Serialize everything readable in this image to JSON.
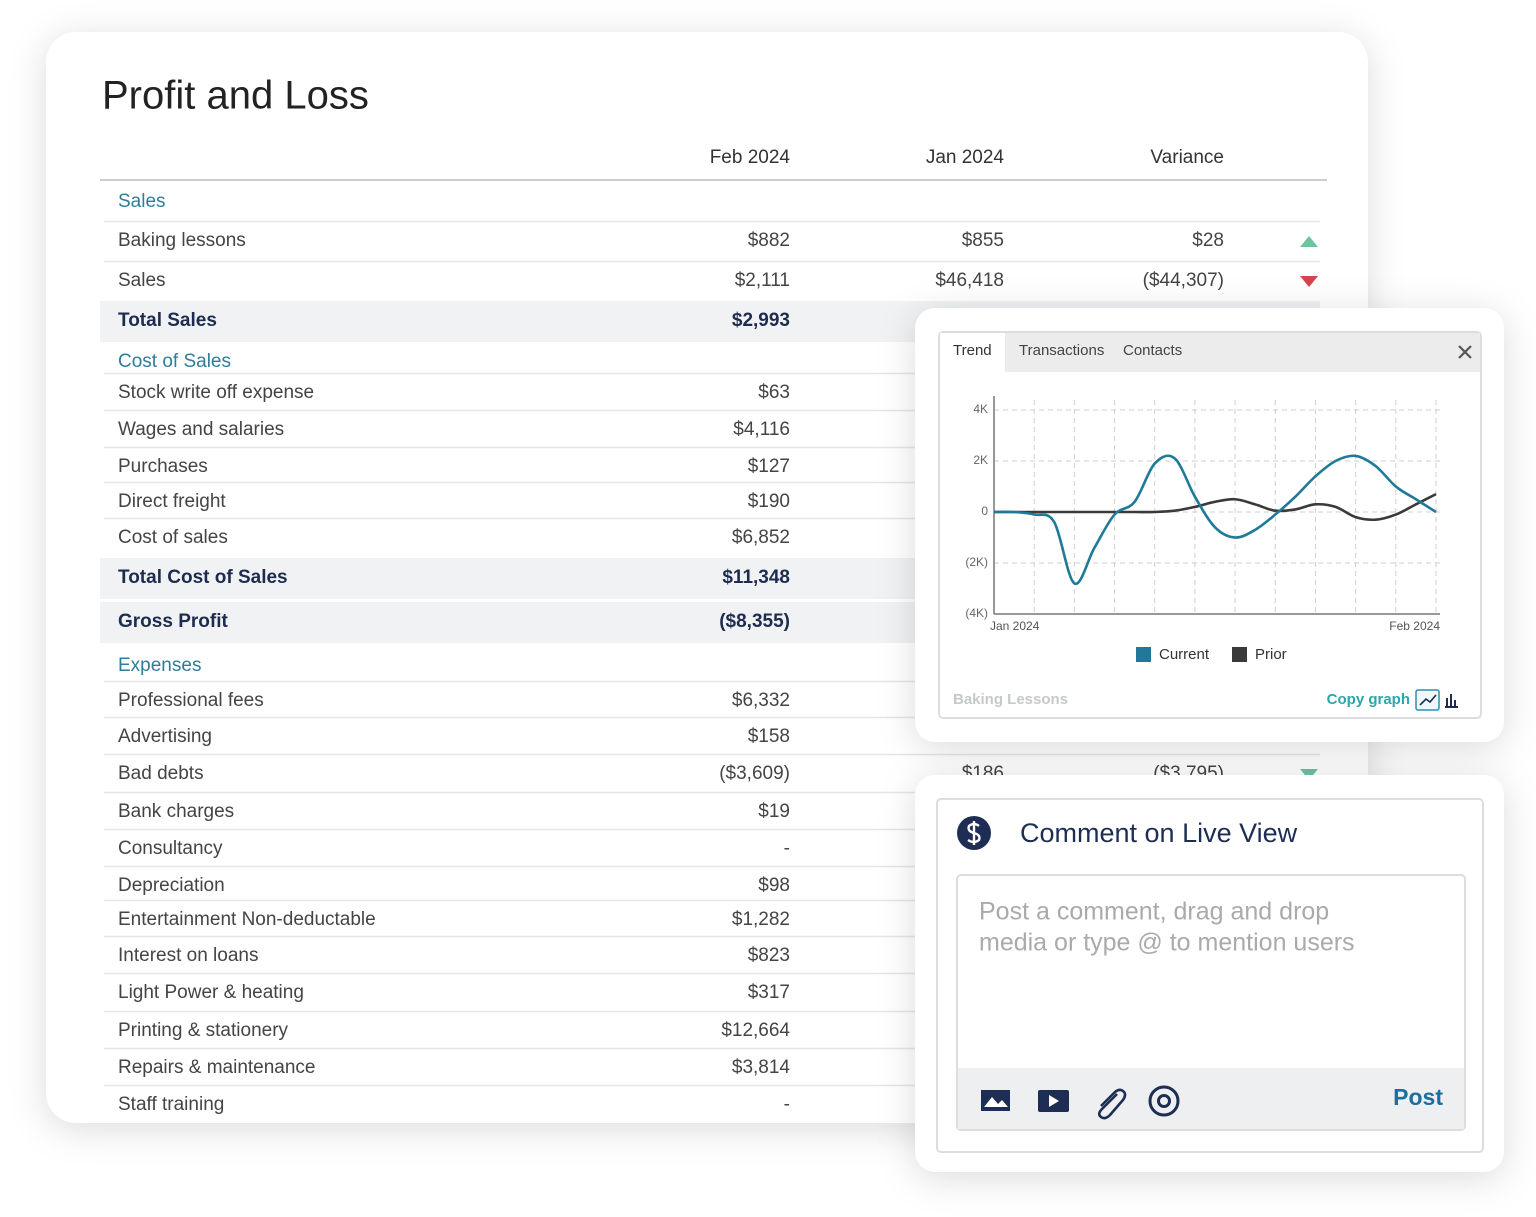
{
  "report": {
    "title": "Profit and Loss",
    "columns": [
      "Feb 2024",
      "Jan 2024",
      "Variance"
    ],
    "sections": [
      {
        "name": "Sales",
        "rows": [
          {
            "label": "Baking lessons",
            "values": [
              "$882",
              "$855",
              "$28"
            ],
            "trend": {
              "direction": "up",
              "color": "#6cc3a0"
            }
          },
          {
            "label": "Sales",
            "values": [
              "$2,111",
              "$46,418",
              "($44,307)"
            ],
            "trend": {
              "direction": "down",
              "color": "#d9434f"
            }
          }
        ],
        "total": {
          "label": "Total Sales",
          "values": [
            "$2,993"
          ]
        }
      },
      {
        "name": "Cost of Sales",
        "rows": [
          {
            "label": "Stock write off expense",
            "values": [
              "$63"
            ]
          },
          {
            "label": "Wages and salaries",
            "values": [
              "$4,116"
            ]
          },
          {
            "label": "Purchases",
            "values": [
              "$127"
            ]
          },
          {
            "label": "Direct freight",
            "values": [
              "$190"
            ]
          },
          {
            "label": "Cost of sales",
            "values": [
              "$6,852"
            ]
          }
        ],
        "total": {
          "label": "Total Cost of Sales",
          "values": [
            "$11,348"
          ]
        }
      }
    ],
    "gross_profit": {
      "label": "Gross Profit",
      "values": [
        "($8,355)"
      ]
    },
    "expenses": {
      "name": "Expenses",
      "rows": [
        {
          "label": "Professional fees",
          "values": [
            "$6,332"
          ]
        },
        {
          "label": "Advertising",
          "values": [
            "$158"
          ]
        },
        {
          "label": "Bad debts",
          "values": [
            "($3,609)",
            "$186",
            "($3,795)"
          ],
          "trend": {
            "direction": "down",
            "color": "#6cc3a0"
          }
        },
        {
          "label": "Bank charges",
          "values": [
            "$19"
          ]
        },
        {
          "label": "Consultancy",
          "values": [
            "-"
          ]
        },
        {
          "label": "Depreciation",
          "values": [
            "$98"
          ]
        },
        {
          "label": "Entertainment Non-deductable",
          "values": [
            "$1,282"
          ]
        },
        {
          "label": "Interest on loans",
          "values": [
            "$823"
          ]
        },
        {
          "label": "Light Power & heating",
          "values": [
            "$317"
          ]
        },
        {
          "label": "Printing & stationery",
          "values": [
            "$12,664"
          ]
        },
        {
          "label": "Repairs & maintenance",
          "values": [
            "$3,814"
          ]
        },
        {
          "label": "Staff training",
          "values": [
            "-"
          ]
        }
      ]
    }
  },
  "trend_panel": {
    "tabs": [
      "Trend",
      "Transactions",
      "Contacts"
    ],
    "caption": "Baking Lessons",
    "copy_label": "Copy graph"
  },
  "chart_data": {
    "type": "line",
    "categories": [
      "Jan 2024",
      null,
      null,
      null,
      null,
      null,
      null,
      null,
      null,
      null,
      null,
      null,
      null,
      null,
      null,
      null,
      null,
      null,
      null,
      null,
      null,
      null,
      "Feb 2024"
    ],
    "series": [
      {
        "name": "Current",
        "color": "#1f7a99",
        "values": [
          0,
          0,
          -100,
          -400,
          -2800,
          -1400,
          -100,
          400,
          1900,
          2100,
          600,
          -600,
          -1000,
          -700,
          -100,
          600,
          1400,
          2000,
          2200,
          1800,
          1000,
          500,
          0
        ]
      },
      {
        "name": "Prior",
        "color": "#3a3a3a",
        "values": [
          0,
          0,
          0,
          0,
          0,
          0,
          0,
          0,
          0,
          50,
          200,
          400,
          500,
          300,
          50,
          100,
          300,
          200,
          -200,
          -300,
          -100,
          300,
          700
        ]
      }
    ],
    "ylim": [
      -4000,
      4000
    ],
    "yticks": [
      {
        "value": 4000,
        "label": "4K"
      },
      {
        "value": 2000,
        "label": "2K"
      },
      0,
      {
        "value": -2000,
        "label": "(2K)"
      },
      {
        "value": -4000,
        "label": "(4K)"
      }
    ],
    "grid": true
  },
  "comment_panel": {
    "title": "Comment on Live View",
    "placeholder": [
      "Post a comment, drag and drop",
      "media or type @ to mention users"
    ],
    "post_label": "Post"
  }
}
